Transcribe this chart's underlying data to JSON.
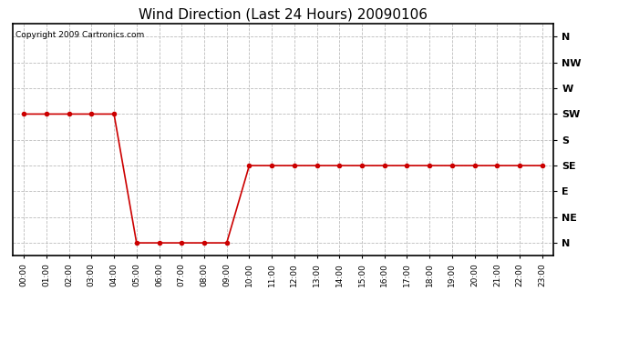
{
  "title": "Wind Direction (Last 24 Hours) 20090106",
  "copyright_text": "Copyright 2009 Cartronics.com",
  "background_color": "#ffffff",
  "plot_bg_color": "#ffffff",
  "grid_color": "#bbbbbb",
  "line_color": "#cc0000",
  "marker": "o",
  "marker_size": 3,
  "line_width": 1.2,
  "y_labels": [
    "N",
    "NE",
    "E",
    "SE",
    "S",
    "SW",
    "W",
    "NW",
    "N"
  ],
  "y_values": [
    0,
    1,
    2,
    3,
    4,
    5,
    6,
    7,
    8
  ],
  "x_hours": [
    0,
    1,
    2,
    3,
    4,
    5,
    6,
    7,
    8,
    9,
    10,
    11,
    12,
    13,
    14,
    15,
    16,
    17,
    18,
    19,
    20,
    21,
    22,
    23
  ],
  "wind_directions": [
    5,
    5,
    5,
    5,
    5,
    0,
    0,
    0,
    0,
    0,
    3,
    3,
    3,
    3,
    3,
    3,
    3,
    3,
    3,
    3,
    3,
    3,
    3,
    3
  ],
  "ylim": [
    -0.5,
    8.5
  ],
  "xlim": [
    -0.5,
    23.5
  ],
  "title_fontsize": 11,
  "copyright_fontsize": 6.5,
  "ytick_fontsize": 8,
  "xtick_fontsize": 6.5
}
